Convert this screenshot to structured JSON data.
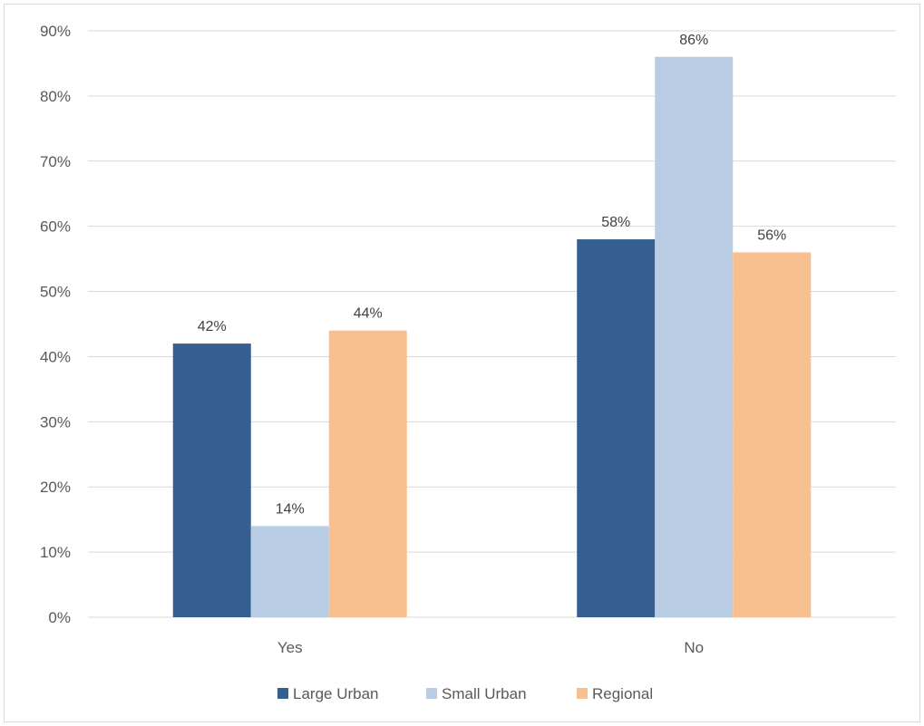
{
  "chart_data": {
    "type": "bar",
    "categories": [
      "Yes",
      "No"
    ],
    "series": [
      {
        "name": "Large Urban",
        "values": [
          42,
          58
        ],
        "color": "#355e91"
      },
      {
        "name": "Small Urban",
        "values": [
          14,
          86
        ],
        "color": "#b8cce4"
      },
      {
        "name": "Regional",
        "values": [
          44,
          56
        ],
        "color": "#f9c08f"
      }
    ],
    "data_labels": [
      [
        "42%",
        "58%"
      ],
      [
        "14%",
        "86%"
      ],
      [
        "44%",
        "56%"
      ]
    ],
    "title": "",
    "xlabel": "",
    "ylabel": "",
    "ylim": [
      0,
      90
    ],
    "yticks": [
      0,
      10,
      20,
      30,
      40,
      50,
      60,
      70,
      80,
      90
    ],
    "ytick_labels": [
      "0%",
      "10%",
      "20%",
      "30%",
      "40%",
      "50%",
      "60%",
      "70%",
      "80%",
      "90%"
    ],
    "grid": true,
    "legend_position": "bottom",
    "gridline_color": "#d9d9d9"
  }
}
